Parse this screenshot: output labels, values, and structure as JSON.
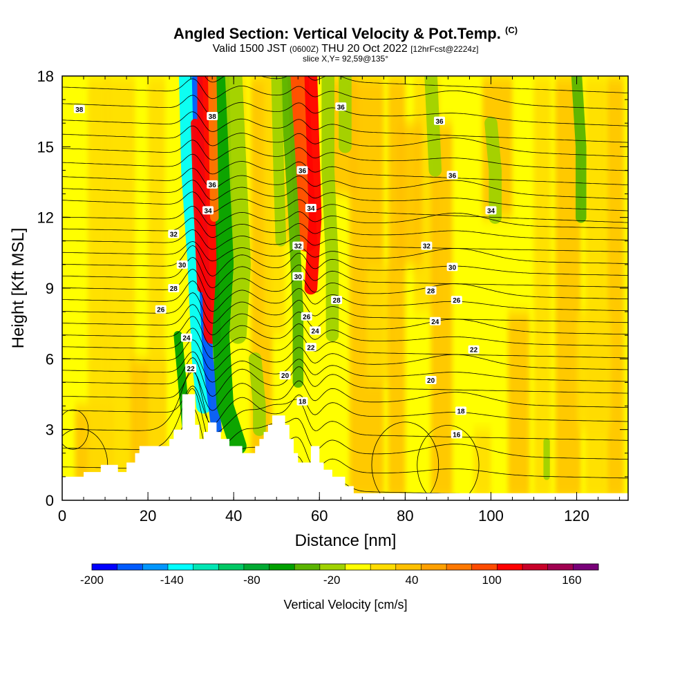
{
  "title": {
    "main": "Angled Section: Vertical Velocity & Pot.Temp.",
    "copyright": "(C)",
    "valid_prefix": "Valid 1500 JST",
    "valid_zulu": "(0600Z)",
    "valid_date": "THU 20 Oct 2022",
    "forecast": "[12hrFcst@2224z]",
    "slice": "slice X,Y= 92,59@135°"
  },
  "chart_data": {
    "type": "heatmap",
    "xlabel": "Distance [nm]",
    "ylabel": "Height [Kft MSL]",
    "xlim": [
      0,
      132
    ],
    "ylim": [
      0,
      18
    ],
    "x_ticks": [
      "0",
      "20",
      "40",
      "60",
      "80",
      "100",
      "120"
    ],
    "y_ticks": [
      "0",
      "3",
      "6",
      "9",
      "12",
      "15",
      "18"
    ],
    "colorbar": {
      "title": "Vertical Velocity [cm/s]",
      "tick_labels": [
        "-200",
        "-140",
        "-80",
        "-20",
        "40",
        "100",
        "160"
      ],
      "range": [
        -200,
        180
      ],
      "step": 20,
      "colors": [
        "#0000ff",
        "#005aff",
        "#0096ff",
        "#00ffff",
        "#00e6b4",
        "#00c864",
        "#00aa32",
        "#00a000",
        "#5ab400",
        "#a0d200",
        "#ffff00",
        "#ffdc00",
        "#ffc000",
        "#ffa000",
        "#ff7800",
        "#ff4b00",
        "#ff0000",
        "#c80028",
        "#a00050",
        "#780078"
      ]
    },
    "terrain": [
      [
        0,
        1
      ],
      [
        5,
        1
      ],
      [
        5,
        1.2
      ],
      [
        9,
        1.2
      ],
      [
        9,
        1.5
      ],
      [
        13,
        1.5
      ],
      [
        13,
        1.2
      ],
      [
        15,
        1.2
      ],
      [
        15,
        1.6
      ],
      [
        17,
        1.6
      ],
      [
        17,
        2
      ],
      [
        18,
        2
      ],
      [
        18,
        2.3
      ],
      [
        25,
        2.3
      ],
      [
        25,
        2.6
      ],
      [
        26,
        2.6
      ],
      [
        26,
        3
      ],
      [
        28,
        3
      ],
      [
        28,
        4.5
      ],
      [
        31,
        4.5
      ],
      [
        31,
        3.2
      ],
      [
        32,
        3.2
      ],
      [
        32,
        2.6
      ],
      [
        33,
        2.6
      ],
      [
        33,
        2.9
      ],
      [
        34,
        2.9
      ],
      [
        34,
        3.3
      ],
      [
        36,
        3.3
      ],
      [
        36,
        2.9
      ],
      [
        37,
        2.9
      ],
      [
        37,
        2.6
      ],
      [
        39,
        2.6
      ],
      [
        39,
        2.3
      ],
      [
        42,
        2.3
      ],
      [
        42,
        2
      ],
      [
        45,
        2
      ],
      [
        45,
        2.3
      ],
      [
        46,
        2.3
      ],
      [
        46,
        2.6
      ],
      [
        47,
        2.6
      ],
      [
        47,
        2.9
      ],
      [
        48,
        2.9
      ],
      [
        48,
        3.2
      ],
      [
        49,
        3.2
      ],
      [
        49,
        3.6
      ],
      [
        52,
        3.6
      ],
      [
        52,
        3.2
      ],
      [
        53,
        3.2
      ],
      [
        53,
        2.6
      ],
      [
        54,
        2.6
      ],
      [
        54,
        2
      ],
      [
        55,
        2
      ],
      [
        55,
        1.6
      ],
      [
        58,
        1.6
      ],
      [
        58,
        2.3
      ],
      [
        60,
        2.3
      ],
      [
        60,
        1.6
      ],
      [
        61,
        1.6
      ],
      [
        61,
        1.3
      ],
      [
        63,
        1.3
      ],
      [
        63,
        1
      ],
      [
        66,
        1
      ],
      [
        66,
        0.6
      ],
      [
        68,
        0.6
      ],
      [
        68,
        0.3
      ],
      [
        132,
        0.3
      ]
    ],
    "theta_contours": {
      "levels_K": [
        16,
        18,
        20,
        22,
        24,
        26,
        28,
        30,
        32,
        34,
        36,
        38
      ],
      "labels": [
        {
          "text": "38",
          "x": 4,
          "y": 16.6
        },
        {
          "text": "38",
          "x": 35,
          "y": 16.3
        },
        {
          "text": "36",
          "x": 65,
          "y": 16.7
        },
        {
          "text": "36",
          "x": 88,
          "y": 16.1
        },
        {
          "text": "36",
          "x": 56,
          "y": 14.0
        },
        {
          "text": "36",
          "x": 91,
          "y": 13.8
        },
        {
          "text": "36",
          "x": 35,
          "y": 13.4
        },
        {
          "text": "34",
          "x": 34,
          "y": 12.3
        },
        {
          "text": "34",
          "x": 58,
          "y": 12.4
        },
        {
          "text": "34",
          "x": 100,
          "y": 12.3
        },
        {
          "text": "32",
          "x": 26,
          "y": 11.3
        },
        {
          "text": "32",
          "x": 55,
          "y": 10.8
        },
        {
          "text": "32",
          "x": 85,
          "y": 10.8
        },
        {
          "text": "30",
          "x": 28,
          "y": 10.0
        },
        {
          "text": "30",
          "x": 55,
          "y": 9.5
        },
        {
          "text": "30",
          "x": 91,
          "y": 9.9
        },
        {
          "text": "28",
          "x": 26,
          "y": 9.0
        },
        {
          "text": "28",
          "x": 64,
          "y": 8.5
        },
        {
          "text": "28",
          "x": 86,
          "y": 8.9
        },
        {
          "text": "26",
          "x": 23,
          "y": 8.1
        },
        {
          "text": "26",
          "x": 57,
          "y": 7.8
        },
        {
          "text": "26",
          "x": 92,
          "y": 8.5
        },
        {
          "text": "24",
          "x": 29,
          "y": 6.9
        },
        {
          "text": "24",
          "x": 59,
          "y": 7.2
        },
        {
          "text": "24",
          "x": 87,
          "y": 7.6
        },
        {
          "text": "22",
          "x": 30,
          "y": 5.6
        },
        {
          "text": "22",
          "x": 58,
          "y": 6.5
        },
        {
          "text": "22",
          "x": 96,
          "y": 6.4
        },
        {
          "text": "20",
          "x": 52,
          "y": 5.3
        },
        {
          "text": "20",
          "x": 86,
          "y": 5.1
        },
        {
          "text": "18",
          "x": 56,
          "y": 4.2
        },
        {
          "text": "18",
          "x": 93,
          "y": 3.8
        },
        {
          "text": "16",
          "x": 92,
          "y": 2.8
        }
      ]
    }
  }
}
